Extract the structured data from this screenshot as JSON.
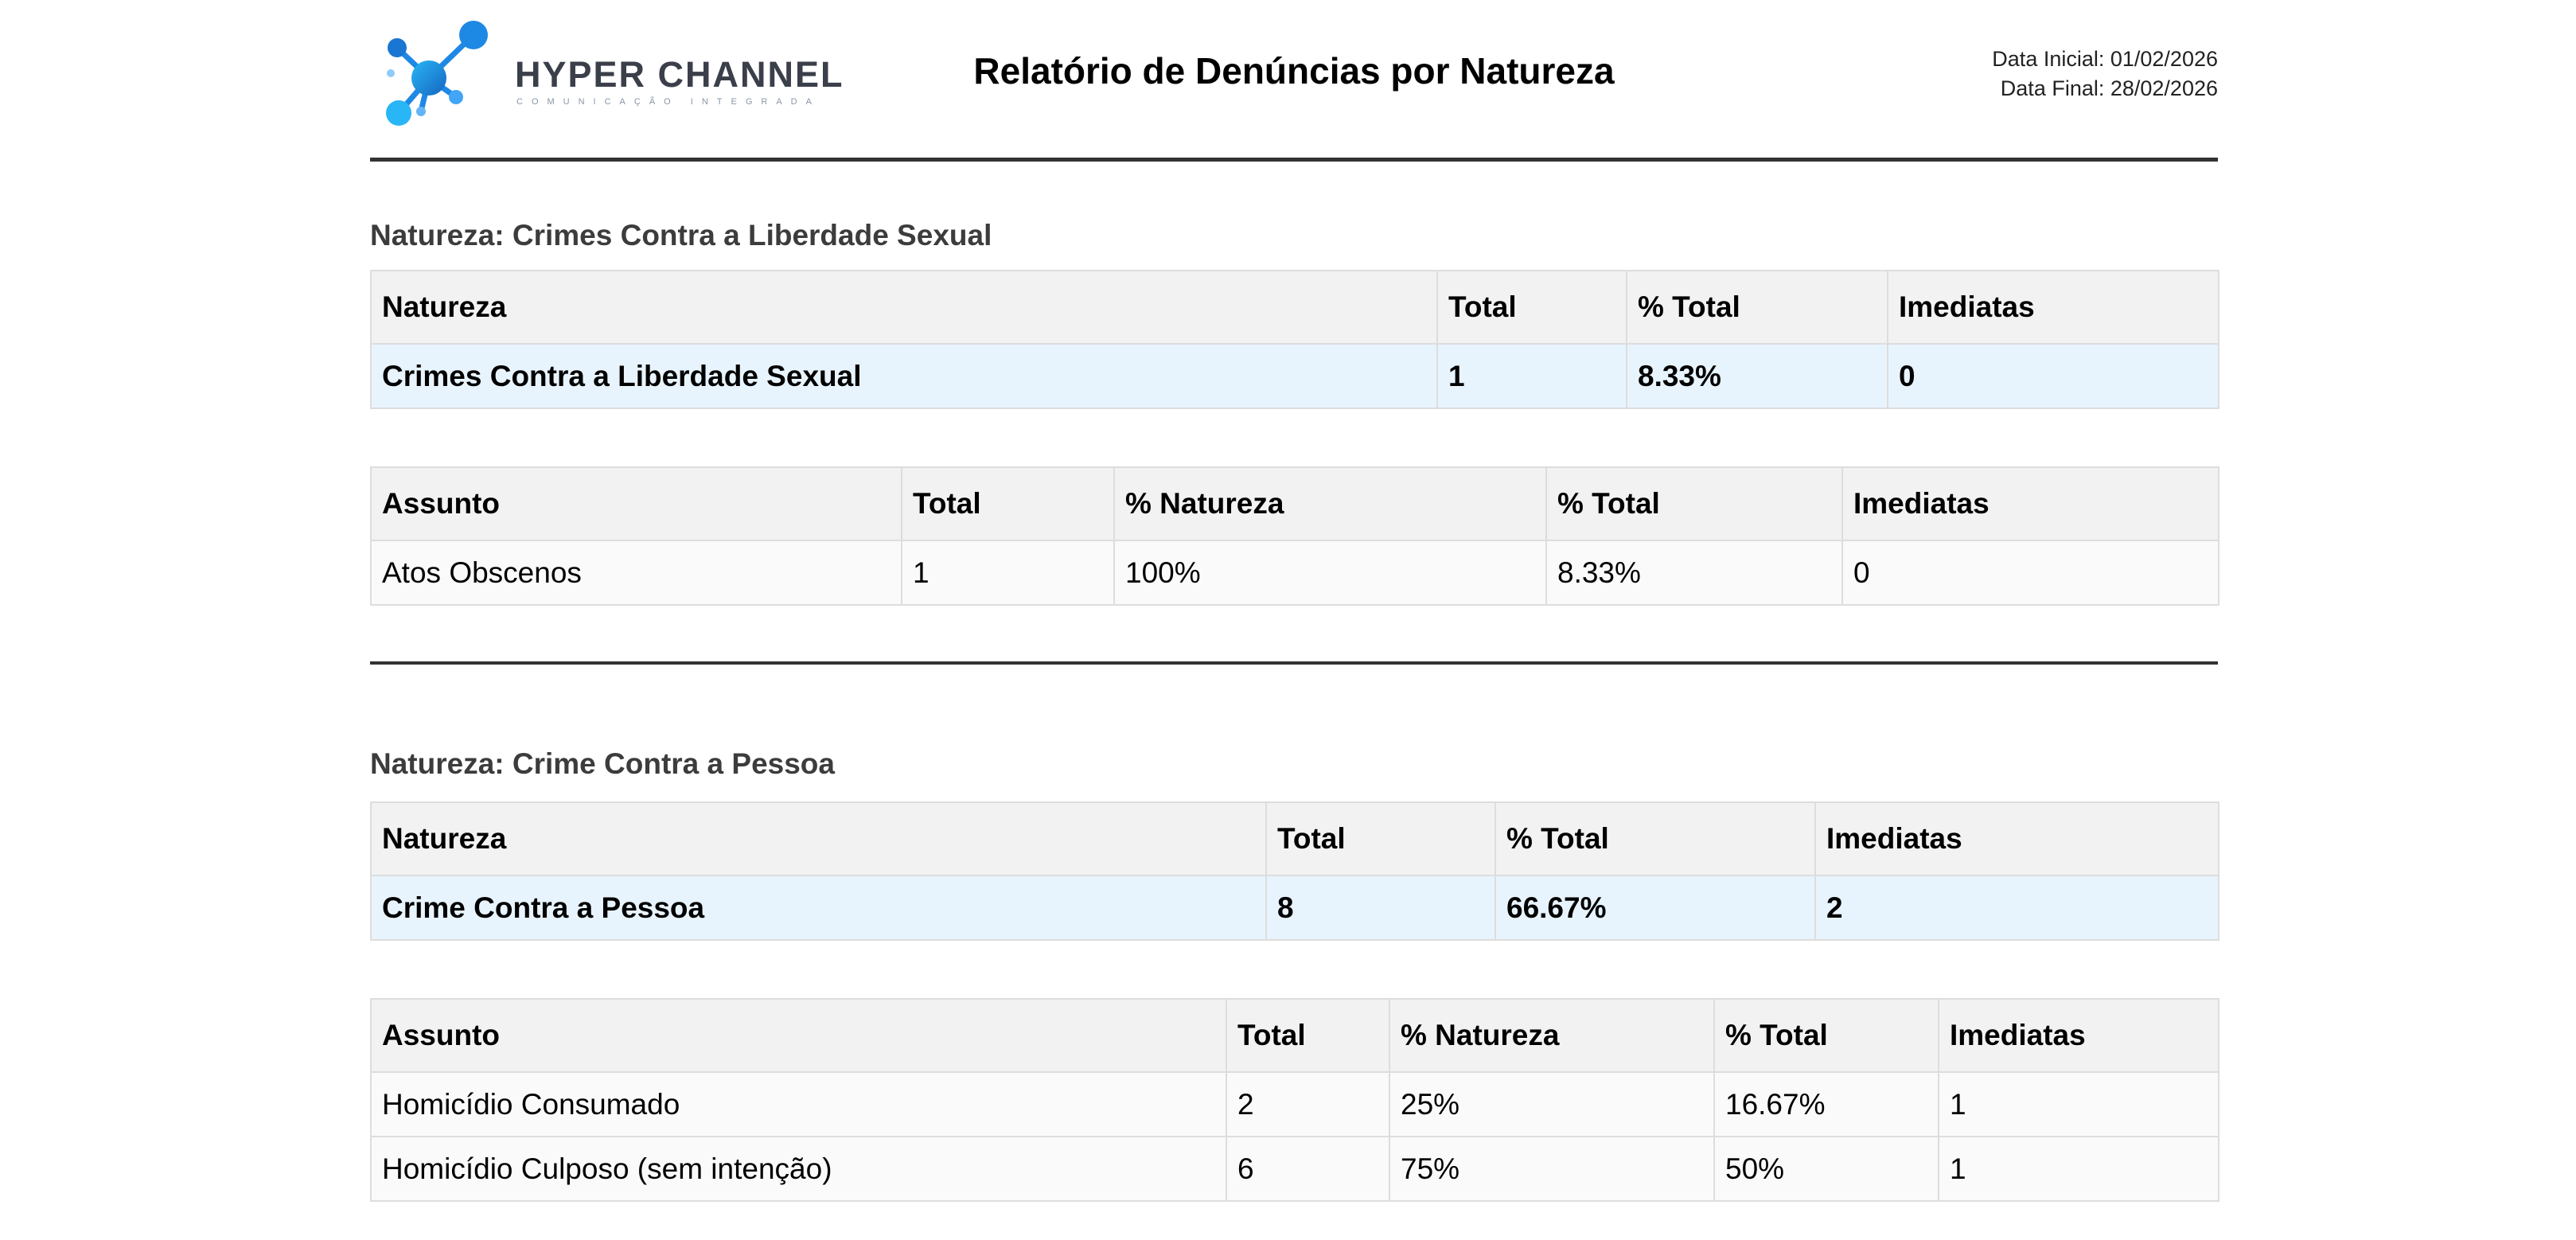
{
  "header": {
    "logo": {
      "name": "HYPER CHANNEL",
      "tagline": "COMUNICAÇÃO INTEGRADA",
      "colors": [
        "#1e88e5",
        "#29b6f6",
        "#0d47a1"
      ]
    },
    "title": "Relatório de Denúncias por Natureza",
    "date_start": "Data Inicial: 01/02/2026",
    "date_end": "Data Final: 28/02/2026"
  },
  "colors": {
    "summary_row_bg": "#e8f4fd",
    "header_row_bg": "#f2f2f2",
    "rule": "#333333"
  },
  "sections": [
    {
      "title": "Natureza: Crimes Contra a Liberdade Sexual",
      "nature_table": {
        "headers": [
          "Natureza",
          "Total",
          "% Total",
          "Imediatas"
        ],
        "row": [
          "Crimes Contra a Liberdade Sexual",
          "1",
          "8.33%",
          "0"
        ]
      },
      "subject_table": {
        "headers": [
          "Assunto",
          "Total",
          "% Natureza",
          "% Total",
          "Imediatas"
        ],
        "rows": [
          [
            "Atos Obscenos",
            "1",
            "100%",
            "8.33%",
            "0"
          ]
        ]
      }
    },
    {
      "title": "Natureza: Crime Contra a Pessoa",
      "nature_table": {
        "headers": [
          "Natureza",
          "Total",
          "% Total",
          "Imediatas"
        ],
        "row": [
          "Crime Contra a Pessoa",
          "8",
          "66.67%",
          "2"
        ]
      },
      "subject_table": {
        "headers": [
          "Assunto",
          "Total",
          "% Natureza",
          "% Total",
          "Imediatas"
        ],
        "rows": [
          [
            "Homicídio Consumado",
            "2",
            "25%",
            "16.67%",
            "1"
          ],
          [
            "Homicídio Culposo (sem intenção)",
            "6",
            "75%",
            "50%",
            "1"
          ]
        ]
      }
    }
  ]
}
